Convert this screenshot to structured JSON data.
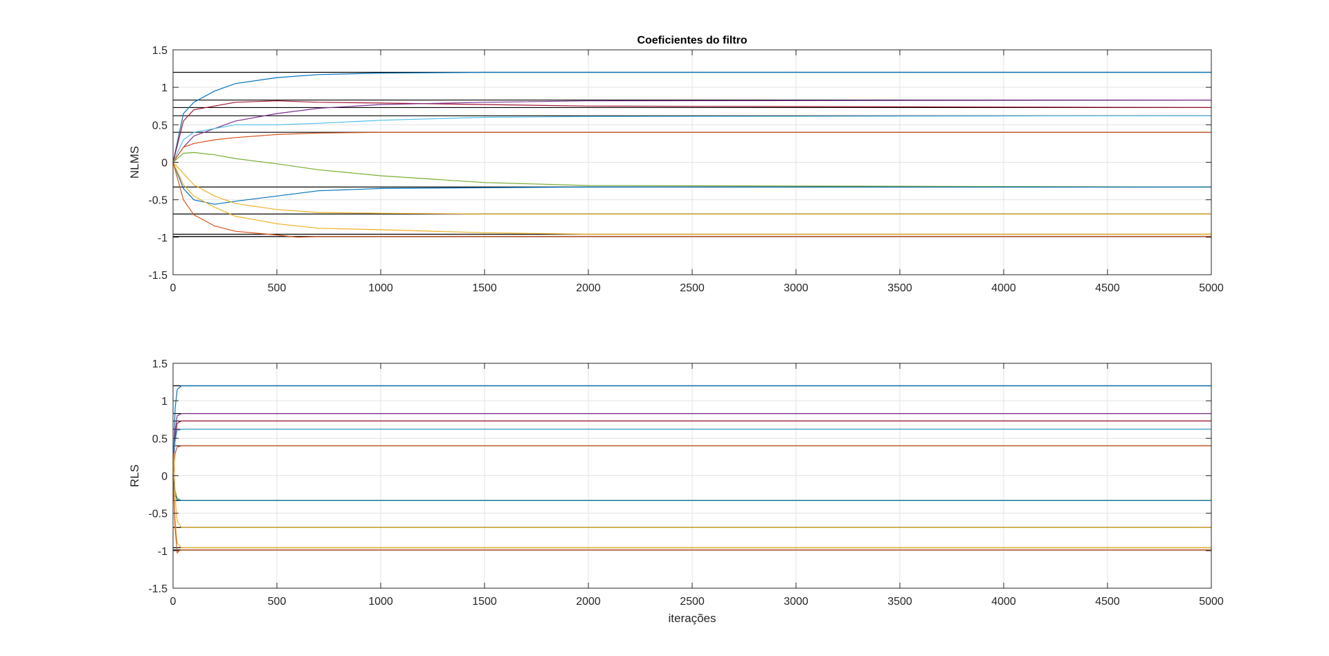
{
  "chart_data": [
    {
      "type": "line",
      "title": "Coeficientes do filtro",
      "xlabel": "",
      "ylabel": "NLMS",
      "xlim": [
        0,
        5000
      ],
      "ylim": [
        -1.5,
        1.5
      ],
      "xticks": [
        "0",
        "500",
        "1000",
        "1500",
        "2000",
        "2500",
        "3000",
        "3500",
        "4000",
        "4500",
        "5000"
      ],
      "yticks": [
        "1.5",
        "1",
        "0.5",
        "0",
        "-0.5",
        "-1",
        "-1.5"
      ],
      "grid": true,
      "reference_levels": [
        1.2,
        0.83,
        0.73,
        0.62,
        0.4,
        -0.33,
        -0.69,
        -0.96,
        -0.99
      ],
      "series": [
        {
          "color": "#0072BD",
          "x": [
            0,
            50,
            100,
            200,
            300,
            500,
            700,
            1000,
            1500,
            2000,
            5000
          ],
          "y": [
            0,
            0.65,
            0.8,
            0.95,
            1.05,
            1.13,
            1.17,
            1.19,
            1.2,
            1.2,
            1.2
          ]
        },
        {
          "color": "#A2142F",
          "x": [
            0,
            50,
            100,
            300,
            500,
            700,
            1000,
            2000,
            5000
          ],
          "y": [
            0,
            0.55,
            0.7,
            0.8,
            0.82,
            0.8,
            0.79,
            0.75,
            0.73
          ]
        },
        {
          "color": "#7E2F8E",
          "x": [
            0,
            50,
            100,
            200,
            300,
            500,
            700,
            1000,
            1500,
            2000,
            5000
          ],
          "y": [
            0,
            0.2,
            0.35,
            0.45,
            0.55,
            0.65,
            0.72,
            0.77,
            0.8,
            0.82,
            0.83
          ]
        },
        {
          "color": "#4DBEEE",
          "x": [
            0,
            50,
            100,
            200,
            300,
            500,
            700,
            1000,
            1500,
            2000,
            5000
          ],
          "y": [
            0,
            0.3,
            0.4,
            0.45,
            0.5,
            0.5,
            0.52,
            0.56,
            0.6,
            0.61,
            0.62
          ]
        },
        {
          "color": "#D95319",
          "x": [
            0,
            50,
            100,
            200,
            300,
            500,
            700,
            1000,
            2000,
            5000
          ],
          "y": [
            0,
            0.2,
            0.25,
            0.3,
            0.33,
            0.37,
            0.39,
            0.4,
            0.4,
            0.4
          ]
        },
        {
          "color": "#77AC30",
          "x": [
            0,
            50,
            100,
            200,
            300,
            500,
            700,
            1000,
            1500,
            2000,
            5000
          ],
          "y": [
            0,
            0.12,
            0.13,
            0.1,
            0.05,
            -0.02,
            -0.1,
            -0.18,
            -0.27,
            -0.31,
            -0.33
          ]
        },
        {
          "color": "#0072BD",
          "x": [
            0,
            50,
            100,
            200,
            300,
            500,
            700,
            1000,
            1500,
            2000,
            5000
          ],
          "y": [
            0,
            -0.35,
            -0.5,
            -0.56,
            -0.52,
            -0.45,
            -0.38,
            -0.35,
            -0.34,
            -0.33,
            -0.33
          ]
        },
        {
          "color": "#EDB120",
          "x": [
            0,
            50,
            100,
            200,
            300,
            500,
            700,
            1000,
            1500,
            2000,
            5000
          ],
          "y": [
            0,
            -0.15,
            -0.3,
            -0.45,
            -0.55,
            -0.63,
            -0.67,
            -0.68,
            -0.69,
            -0.69,
            -0.69
          ]
        },
        {
          "color": "#EDB120",
          "x": [
            0,
            50,
            100,
            200,
            300,
            500,
            700,
            1000,
            1500,
            2000,
            5000
          ],
          "y": [
            0,
            -0.3,
            -0.45,
            -0.6,
            -0.72,
            -0.82,
            -0.88,
            -0.9,
            -0.94,
            -0.96,
            -0.96
          ]
        },
        {
          "color": "#D95319",
          "x": [
            0,
            50,
            100,
            200,
            300,
            500,
            600,
            700,
            1000,
            2000,
            5000
          ],
          "y": [
            0,
            -0.5,
            -0.7,
            -0.85,
            -0.92,
            -0.97,
            -1.0,
            -0.99,
            -0.99,
            -0.99,
            -0.99
          ]
        }
      ]
    },
    {
      "type": "line",
      "title": "",
      "xlabel": "iterações",
      "ylabel": "RLS",
      "xlim": [
        0,
        5000
      ],
      "ylim": [
        -1.5,
        1.5
      ],
      "xticks": [
        "0",
        "500",
        "1000",
        "1500",
        "2000",
        "2500",
        "3000",
        "3500",
        "4000",
        "4500",
        "5000"
      ],
      "yticks": [
        "1.5",
        "1",
        "0.5",
        "0",
        "-0.5",
        "-1",
        "-1.5"
      ],
      "grid": true,
      "reference_levels": [
        1.2,
        0.83,
        0.73,
        0.62,
        0.4,
        -0.33,
        -0.69,
        -0.96,
        -0.99
      ],
      "series": [
        {
          "color": "#0072BD",
          "x": [
            0,
            10,
            20,
            40,
            5000
          ],
          "y": [
            0,
            0.9,
            1.15,
            1.2,
            1.2
          ]
        },
        {
          "color": "#A2142F",
          "x": [
            0,
            10,
            20,
            40,
            5000
          ],
          "y": [
            0,
            0.5,
            0.7,
            0.73,
            0.73
          ]
        },
        {
          "color": "#7E2F8E",
          "x": [
            0,
            10,
            20,
            40,
            5000
          ],
          "y": [
            0,
            0.6,
            0.8,
            0.83,
            0.83
          ]
        },
        {
          "color": "#4DBEEE",
          "x": [
            0,
            10,
            20,
            40,
            5000
          ],
          "y": [
            0,
            0.45,
            0.6,
            0.62,
            0.62
          ]
        },
        {
          "color": "#D95319",
          "x": [
            0,
            10,
            20,
            40,
            5000
          ],
          "y": [
            0,
            0.3,
            0.38,
            0.4,
            0.4
          ]
        },
        {
          "color": "#77AC30",
          "x": [
            0,
            10,
            20,
            40,
            5000
          ],
          "y": [
            0,
            -0.2,
            -0.3,
            -0.33,
            -0.33
          ]
        },
        {
          "color": "#0072BD",
          "x": [
            0,
            10,
            20,
            40,
            5000
          ],
          "y": [
            0,
            -0.25,
            -0.32,
            -0.33,
            -0.33
          ]
        },
        {
          "color": "#EDB120",
          "x": [
            0,
            5,
            10,
            20,
            40,
            5000
          ],
          "y": [
            0,
            0.3,
            -0.3,
            -0.6,
            -0.69,
            -0.69
          ]
        },
        {
          "color": "#EDB120",
          "x": [
            0,
            10,
            20,
            40,
            5000
          ],
          "y": [
            0,
            -0.6,
            -0.9,
            -0.96,
            -0.96
          ]
        },
        {
          "color": "#D95319",
          "x": [
            0,
            10,
            20,
            30,
            40,
            5000
          ],
          "y": [
            0,
            -0.7,
            -1.03,
            -1.0,
            -0.99,
            -0.99
          ]
        }
      ]
    }
  ]
}
